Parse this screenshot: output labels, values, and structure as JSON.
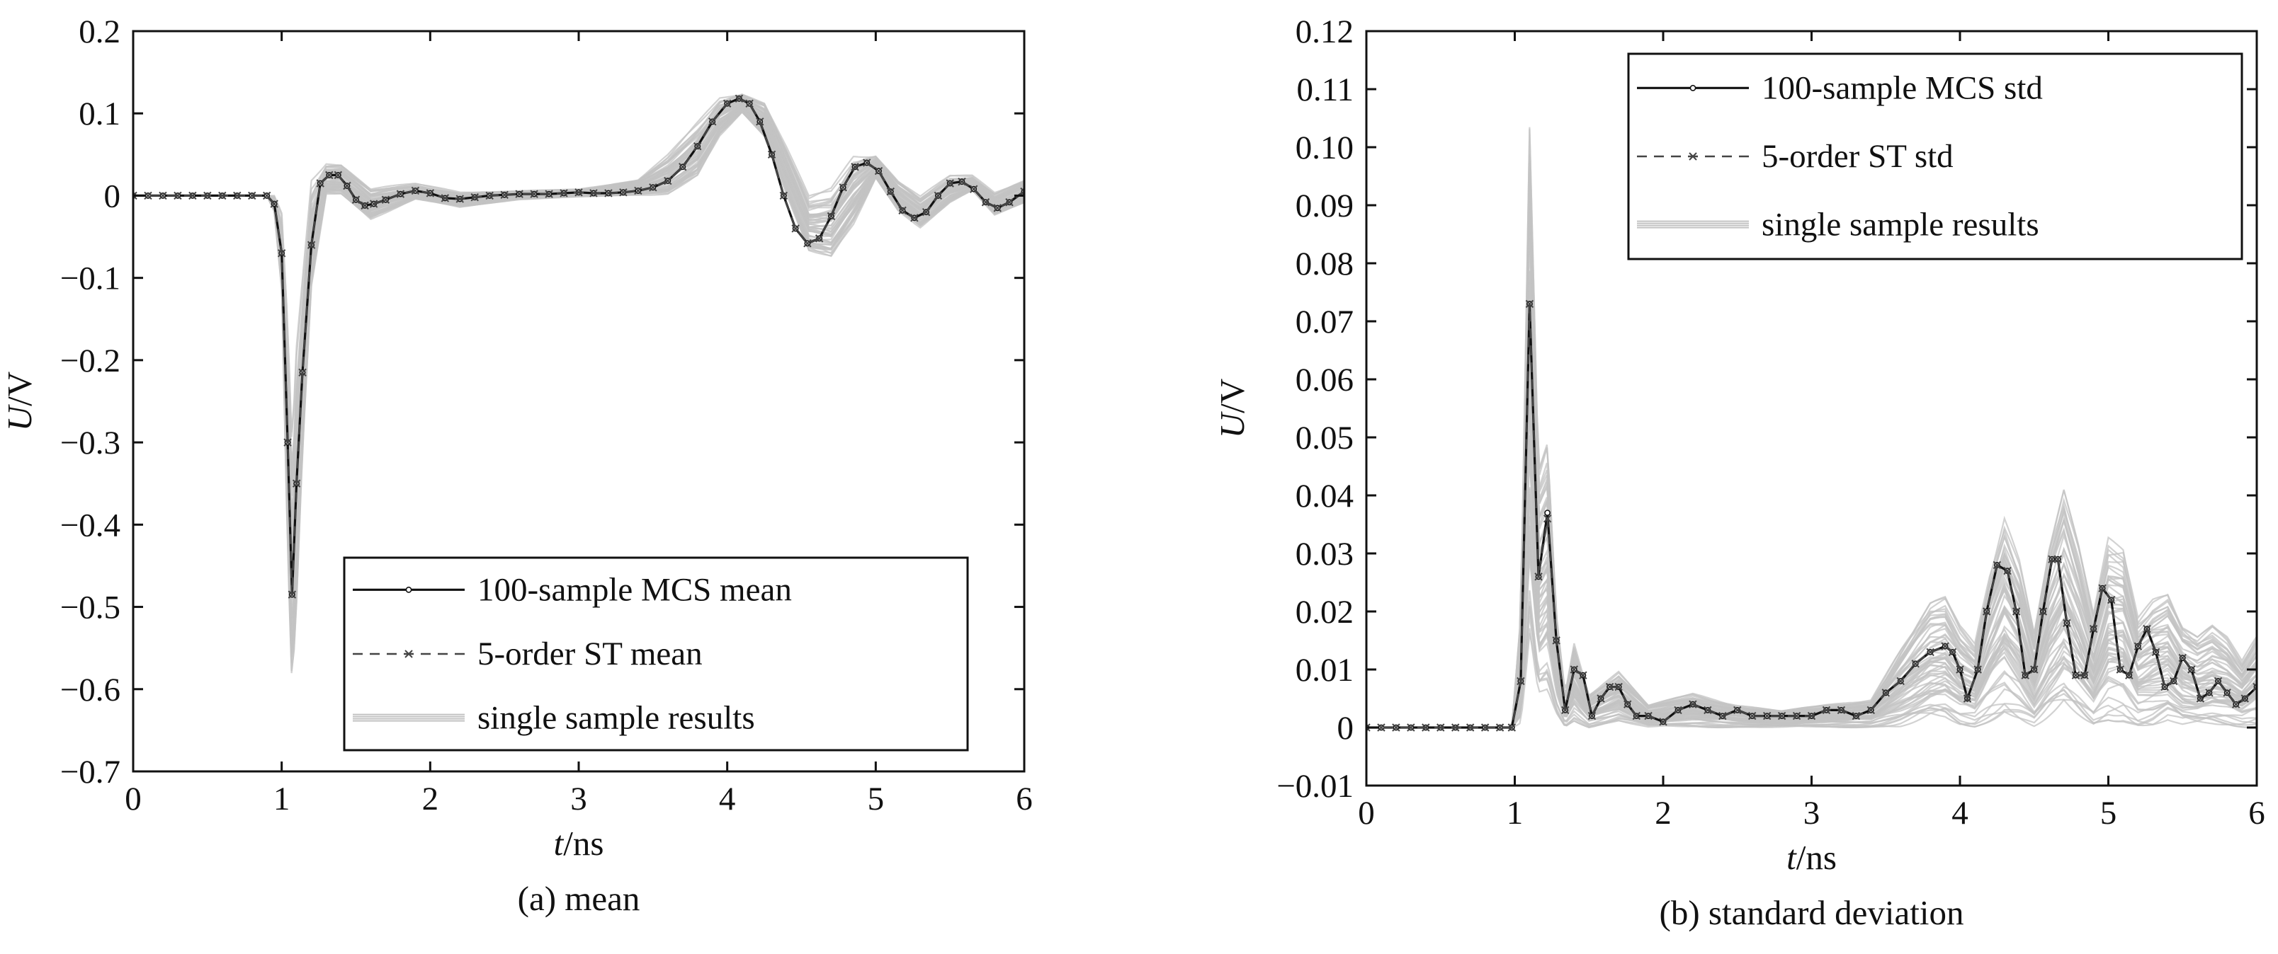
{
  "colors": {
    "samples": "#c3c3c3",
    "mcs": "#111111",
    "st": "#444444",
    "axis": "#111111"
  },
  "chart_data": [
    {
      "type": "line",
      "caption": "(a) mean",
      "xlabel": {
        "italic": "t",
        "unit": "/ns"
      },
      "ylabel": {
        "italic": "U",
        "unit": "/V"
      },
      "xlim": [
        0,
        6
      ],
      "ylim": [
        -0.7,
        0.2
      ],
      "xticks": [
        0,
        1,
        2,
        3,
        4,
        5,
        6
      ],
      "xtick_labels": [
        "0",
        "1",
        "2",
        "3",
        "4",
        "5",
        "6"
      ],
      "yticks": [
        0.2,
        0.1,
        0,
        -0.1,
        -0.2,
        -0.3,
        -0.4,
        -0.5,
        -0.6,
        -0.7
      ],
      "ytick_labels": [
        "0.2",
        "0.1",
        "0",
        "−0.1",
        "−0.2",
        "−0.3",
        "−0.4",
        "−0.5",
        "−0.6",
        "−0.7"
      ],
      "grid": false,
      "legend_placement": "lower-center",
      "legend": [
        "100-sample MCS mean",
        "5-order ST mean",
        "single sample results"
      ],
      "series": [
        {
          "name": "100-sample MCS mean",
          "x": [
            0,
            0.1,
            0.2,
            0.3,
            0.4,
            0.5,
            0.6,
            0.7,
            0.8,
            0.9,
            0.95,
            1.0,
            1.04,
            1.07,
            1.1,
            1.14,
            1.2,
            1.26,
            1.32,
            1.38,
            1.44,
            1.5,
            1.56,
            1.62,
            1.7,
            1.8,
            1.9,
            2.0,
            2.1,
            2.2,
            2.3,
            2.4,
            2.5,
            2.6,
            2.7,
            2.8,
            2.9,
            3.0,
            3.1,
            3.2,
            3.3,
            3.4,
            3.5,
            3.6,
            3.7,
            3.8,
            3.9,
            4.0,
            4.08,
            4.15,
            4.22,
            4.3,
            4.38,
            4.46,
            4.54,
            4.62,
            4.7,
            4.78,
            4.86,
            4.94,
            5.02,
            5.1,
            5.18,
            5.26,
            5.34,
            5.42,
            5.5,
            5.58,
            5.66,
            5.74,
            5.82,
            5.9,
            6.0
          ],
          "y": [
            0,
            0,
            0,
            0,
            0,
            0,
            0,
            0,
            0,
            0,
            -0.01,
            -0.07,
            -0.3,
            -0.485,
            -0.35,
            -0.215,
            -0.06,
            0.015,
            0.025,
            0.025,
            0.012,
            -0.005,
            -0.012,
            -0.01,
            -0.005,
            0.002,
            0.006,
            0.003,
            -0.003,
            -0.004,
            -0.002,
            0,
            0.001,
            0.002,
            0.002,
            0.002,
            0.003,
            0.004,
            0.003,
            0.003,
            0.004,
            0.006,
            0.01,
            0.018,
            0.035,
            0.06,
            0.09,
            0.112,
            0.118,
            0.112,
            0.09,
            0.05,
            0.0,
            -0.04,
            -0.058,
            -0.052,
            -0.025,
            0.01,
            0.035,
            0.04,
            0.03,
            0.005,
            -0.018,
            -0.027,
            -0.02,
            0.0,
            0.015,
            0.017,
            0.008,
            -0.008,
            -0.015,
            -0.008,
            0.005
          ]
        },
        {
          "name": "5-order ST mean",
          "x": [
            0,
            0.1,
            0.2,
            0.3,
            0.4,
            0.5,
            0.6,
            0.7,
            0.8,
            0.9,
            0.95,
            1.0,
            1.04,
            1.07,
            1.1,
            1.14,
            1.2,
            1.26,
            1.32,
            1.38,
            1.44,
            1.5,
            1.56,
            1.62,
            1.7,
            1.8,
            1.9,
            2.0,
            2.1,
            2.2,
            2.3,
            2.4,
            2.5,
            2.6,
            2.7,
            2.8,
            2.9,
            3.0,
            3.1,
            3.2,
            3.3,
            3.4,
            3.5,
            3.6,
            3.7,
            3.8,
            3.9,
            4.0,
            4.08,
            4.15,
            4.22,
            4.3,
            4.38,
            4.46,
            4.54,
            4.62,
            4.7,
            4.78,
            4.86,
            4.94,
            5.02,
            5.1,
            5.18,
            5.26,
            5.34,
            5.42,
            5.5,
            5.58,
            5.66,
            5.74,
            5.82,
            5.9,
            6.0
          ],
          "y": [
            0,
            0,
            0,
            0,
            0,
            0,
            0,
            0,
            0,
            0,
            -0.01,
            -0.07,
            -0.3,
            -0.485,
            -0.35,
            -0.215,
            -0.06,
            0.015,
            0.025,
            0.025,
            0.012,
            -0.005,
            -0.012,
            -0.01,
            -0.005,
            0.002,
            0.006,
            0.003,
            -0.003,
            -0.004,
            -0.002,
            0,
            0.001,
            0.002,
            0.002,
            0.002,
            0.003,
            0.004,
            0.003,
            0.003,
            0.004,
            0.006,
            0.01,
            0.018,
            0.035,
            0.06,
            0.09,
            0.112,
            0.118,
            0.112,
            0.09,
            0.05,
            0.0,
            -0.04,
            -0.058,
            -0.052,
            -0.025,
            0.01,
            0.035,
            0.04,
            0.03,
            0.005,
            -0.018,
            -0.027,
            -0.02,
            0.0,
            0.015,
            0.017,
            0.008,
            -0.008,
            -0.015,
            -0.008,
            0.005
          ]
        }
      ],
      "sample_band": {
        "name": "single sample results",
        "x": [
          0,
          0.9,
          0.95,
          1.0,
          1.04,
          1.07,
          1.1,
          1.14,
          1.2,
          1.3,
          1.4,
          1.6,
          1.9,
          2.2,
          2.6,
          3.0,
          3.4,
          3.6,
          3.8,
          3.95,
          4.1,
          4.25,
          4.4,
          4.55,
          4.7,
          4.85,
          5.0,
          5.15,
          5.3,
          5.5,
          5.65,
          5.8,
          6.0
        ],
        "upper": [
          0.0,
          0.0,
          0.0,
          -0.02,
          -0.15,
          -0.3,
          -0.18,
          -0.1,
          0.02,
          0.04,
          0.04,
          0.01,
          0.015,
          0.005,
          0.006,
          0.008,
          0.02,
          0.05,
          0.09,
          0.12,
          0.125,
          0.115,
          0.06,
          0.0,
          0.01,
          0.05,
          0.05,
          0.02,
          0.0,
          0.025,
          0.025,
          0.005,
          0.02
        ],
        "lower": [
          0.0,
          0.0,
          -0.02,
          -0.12,
          -0.45,
          -0.62,
          -0.52,
          -0.33,
          -0.12,
          0.0,
          0.0,
          -0.03,
          -0.005,
          -0.015,
          -0.005,
          -0.002,
          0.0,
          0.0,
          0.02,
          0.07,
          0.1,
          0.07,
          0.0,
          -0.07,
          -0.08,
          -0.04,
          0.02,
          -0.02,
          -0.04,
          -0.01,
          0.005,
          -0.025,
          -0.01
        ]
      }
    },
    {
      "type": "line",
      "caption": "(b) standard deviation",
      "xlabel": {
        "italic": "t",
        "unit": "/ns"
      },
      "ylabel": {
        "italic": "U",
        "unit": "/V"
      },
      "xlim": [
        0,
        6
      ],
      "ylim": [
        -0.01,
        0.12
      ],
      "xticks": [
        0,
        1,
        2,
        3,
        4,
        5,
        6
      ],
      "xtick_labels": [
        "0",
        "1",
        "2",
        "3",
        "4",
        "5",
        "6"
      ],
      "yticks": [
        0.12,
        0.11,
        0.1,
        0.09,
        0.08,
        0.07,
        0.06,
        0.05,
        0.04,
        0.03,
        0.02,
        0.01,
        0,
        -0.01
      ],
      "ytick_labels": [
        "0.12",
        "0.11",
        "0.10",
        "0.09",
        "0.08",
        "0.07",
        "0.06",
        "0.05",
        "0.04",
        "0.03",
        "0.02",
        "0.01",
        "0",
        "−0.01"
      ],
      "grid": false,
      "legend_placement": "top-right",
      "legend": [
        "100-sample MCS std",
        "5-order ST std",
        "single sample results"
      ],
      "series": [
        {
          "name": "100-sample MCS std",
          "x": [
            0,
            0.1,
            0.2,
            0.3,
            0.4,
            0.5,
            0.6,
            0.7,
            0.8,
            0.9,
            0.98,
            1.04,
            1.1,
            1.16,
            1.22,
            1.28,
            1.34,
            1.4,
            1.46,
            1.52,
            1.58,
            1.64,
            1.7,
            1.76,
            1.82,
            1.9,
            2.0,
            2.1,
            2.2,
            2.3,
            2.4,
            2.5,
            2.6,
            2.7,
            2.8,
            2.9,
            3.0,
            3.1,
            3.2,
            3.3,
            3.4,
            3.5,
            3.6,
            3.7,
            3.8,
            3.9,
            3.95,
            4.0,
            4.05,
            4.12,
            4.18,
            4.25,
            4.32,
            4.38,
            4.44,
            4.5,
            4.56,
            4.62,
            4.66,
            4.72,
            4.78,
            4.84,
            4.9,
            4.96,
            5.02,
            5.08,
            5.14,
            5.2,
            5.26,
            5.32,
            5.38,
            5.44,
            5.5,
            5.56,
            5.62,
            5.68,
            5.74,
            5.8,
            5.86,
            5.92,
            6.0
          ],
          "y": [
            0,
            0,
            0,
            0,
            0,
            0,
            0,
            0,
            0,
            0,
            0,
            0.008,
            0.073,
            0.026,
            0.037,
            0.015,
            0.003,
            0.01,
            0.009,
            0.002,
            0.005,
            0.007,
            0.007,
            0.004,
            0.002,
            0.002,
            0.001,
            0.003,
            0.004,
            0.003,
            0.002,
            0.003,
            0.002,
            0.002,
            0.002,
            0.002,
            0.002,
            0.003,
            0.003,
            0.002,
            0.003,
            0.006,
            0.008,
            0.011,
            0.013,
            0.014,
            0.013,
            0.01,
            0.005,
            0.01,
            0.02,
            0.028,
            0.027,
            0.02,
            0.009,
            0.01,
            0.02,
            0.029,
            0.029,
            0.018,
            0.009,
            0.009,
            0.017,
            0.024,
            0.022,
            0.01,
            0.009,
            0.014,
            0.017,
            0.013,
            0.007,
            0.008,
            0.012,
            0.01,
            0.005,
            0.006,
            0.008,
            0.006,
            0.004,
            0.005,
            0.007
          ]
        },
        {
          "name": "5-order ST std",
          "x": [
            0,
            0.1,
            0.2,
            0.3,
            0.4,
            0.5,
            0.6,
            0.7,
            0.8,
            0.9,
            0.98,
            1.04,
            1.1,
            1.16,
            1.22,
            1.28,
            1.34,
            1.4,
            1.46,
            1.52,
            1.58,
            1.64,
            1.7,
            1.76,
            1.82,
            1.9,
            2.0,
            2.1,
            2.2,
            2.3,
            2.4,
            2.5,
            2.6,
            2.7,
            2.8,
            2.9,
            3.0,
            3.1,
            3.2,
            3.3,
            3.4,
            3.5,
            3.6,
            3.7,
            3.8,
            3.9,
            3.95,
            4.0,
            4.05,
            4.12,
            4.18,
            4.25,
            4.32,
            4.38,
            4.44,
            4.5,
            4.56,
            4.62,
            4.66,
            4.72,
            4.78,
            4.84,
            4.9,
            4.96,
            5.02,
            5.08,
            5.14,
            5.2,
            5.26,
            5.32,
            5.38,
            5.44,
            5.5,
            5.56,
            5.62,
            5.68,
            5.74,
            5.8,
            5.86,
            5.92,
            6.0
          ],
          "y": [
            0,
            0,
            0,
            0,
            0,
            0,
            0,
            0,
            0,
            0,
            0,
            0.008,
            0.073,
            0.026,
            0.036,
            0.015,
            0.003,
            0.01,
            0.009,
            0.002,
            0.005,
            0.007,
            0.007,
            0.004,
            0.002,
            0.002,
            0.001,
            0.003,
            0.004,
            0.003,
            0.002,
            0.003,
            0.002,
            0.002,
            0.002,
            0.002,
            0.002,
            0.003,
            0.003,
            0.002,
            0.003,
            0.006,
            0.008,
            0.011,
            0.013,
            0.014,
            0.013,
            0.01,
            0.005,
            0.01,
            0.02,
            0.028,
            0.027,
            0.02,
            0.009,
            0.01,
            0.02,
            0.029,
            0.029,
            0.018,
            0.009,
            0.009,
            0.017,
            0.024,
            0.022,
            0.01,
            0.009,
            0.014,
            0.017,
            0.013,
            0.007,
            0.008,
            0.012,
            0.01,
            0.005,
            0.006,
            0.008,
            0.006,
            0.004,
            0.005,
            0.007
          ]
        }
      ],
      "sample_band": {
        "name": "single sample results",
        "x": [
          0,
          0.98,
          1.04,
          1.1,
          1.16,
          1.22,
          1.28,
          1.34,
          1.4,
          1.5,
          1.7,
          1.9,
          2.2,
          2.5,
          2.8,
          3.1,
          3.4,
          3.6,
          3.8,
          3.9,
          4.0,
          4.1,
          4.2,
          4.3,
          4.4,
          4.5,
          4.6,
          4.7,
          4.8,
          4.9,
          5.0,
          5.1,
          5.2,
          5.3,
          5.4,
          5.5,
          5.6,
          5.7,
          5.8,
          5.9,
          6.0
        ],
        "upper": [
          0,
          0,
          0.02,
          0.106,
          0.045,
          0.05,
          0.02,
          0.006,
          0.015,
          0.006,
          0.01,
          0.004,
          0.006,
          0.004,
          0.003,
          0.004,
          0.005,
          0.014,
          0.022,
          0.023,
          0.018,
          0.015,
          0.028,
          0.038,
          0.03,
          0.017,
          0.032,
          0.042,
          0.032,
          0.02,
          0.034,
          0.033,
          0.02,
          0.023,
          0.024,
          0.018,
          0.016,
          0.018,
          0.016,
          0.012,
          0.017
        ],
        "lower": [
          0,
          0,
          0,
          0.01,
          0.004,
          0.005,
          0.002,
          0,
          0.001,
          0,
          0.001,
          0,
          0,
          0,
          0,
          0,
          0,
          0,
          0.001,
          0.001,
          0,
          0,
          0.001,
          0.002,
          0.001,
          0,
          0.001,
          0.002,
          0.001,
          0,
          0.001,
          0.001,
          0,
          0,
          0.001,
          0,
          0,
          0,
          0,
          0,
          0
        ]
      }
    }
  ]
}
